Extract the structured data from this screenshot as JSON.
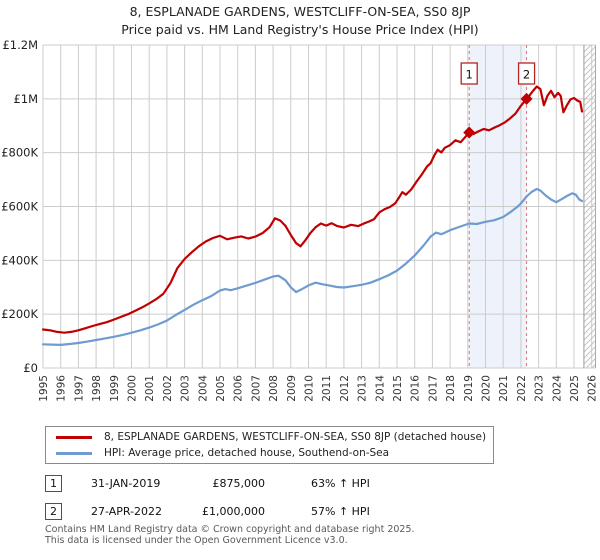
{
  "header": {
    "title": "8, ESPLANADE GARDENS, WESTCLIFF-ON-SEA, SS0 8JP",
    "subtitle": "Price paid vs. HM Land Registry's House Price Index (HPI)"
  },
  "footer": {
    "line1": "Contains HM Land Registry data © Crown copyright and database right 2025.",
    "line2": "This data is licensed under the Open Government Licence v3.0."
  },
  "chart_data": {
    "type": "line",
    "x_range": [
      1995,
      2026
    ],
    "x_ticks": [
      "1995",
      "1996",
      "1997",
      "1998",
      "1999",
      "2000",
      "2001",
      "2002",
      "2003",
      "2004",
      "2005",
      "2006",
      "2007",
      "2008",
      "2009",
      "2010",
      "2011",
      "2012",
      "2013",
      "2014",
      "2015",
      "2016",
      "2017",
      "2018",
      "2019",
      "2020",
      "2021",
      "2022",
      "2023",
      "2024",
      "2025",
      "2026"
    ],
    "y_unit": "GBP thousands",
    "ylim": [
      0,
      1200
    ],
    "y_tick_values": [
      0,
      200,
      400,
      600,
      800,
      1000,
      1200
    ],
    "y_tick_labels": [
      "£0",
      "£200K",
      "£400K",
      "£600K",
      "£800K",
      "£1M",
      "£1.2M"
    ],
    "grid": true,
    "legend_position": "bottom",
    "hatch_from_year": 2025.56,
    "colors": {
      "property": "#c00000",
      "hpi": "#6f9bd1",
      "dashed_marker": "#e57373",
      "shaded_band": "#eef2fb",
      "grid": "#cccccc",
      "marker_box_border": "#bb2222",
      "hatch_line": "#c4c4c4"
    },
    "series": [
      {
        "name": "8, ESPLANADE GARDENS, WESTCLIFF-ON-SEA, SS0 8JP (detached house)",
        "color_key": "property",
        "points": [
          [
            1995.0,
            143
          ],
          [
            1995.4,
            140
          ],
          [
            1995.8,
            134
          ],
          [
            1996.2,
            131
          ],
          [
            1996.6,
            134
          ],
          [
            1997.0,
            140
          ],
          [
            1997.4,
            148
          ],
          [
            1997.8,
            156
          ],
          [
            1998.2,
            163
          ],
          [
            1998.6,
            170
          ],
          [
            1999.0,
            180
          ],
          [
            1999.4,
            190
          ],
          [
            1999.8,
            200
          ],
          [
            2000.2,
            212
          ],
          [
            2000.6,
            225
          ],
          [
            2001.0,
            240
          ],
          [
            2001.4,
            256
          ],
          [
            2001.8,
            276
          ],
          [
            2002.2,
            315
          ],
          [
            2002.6,
            372
          ],
          [
            2003.0,
            405
          ],
          [
            2003.4,
            430
          ],
          [
            2003.8,
            452
          ],
          [
            2004.2,
            470
          ],
          [
            2004.6,
            483
          ],
          [
            2005.0,
            491
          ],
          [
            2005.4,
            478
          ],
          [
            2005.8,
            484
          ],
          [
            2006.2,
            489
          ],
          [
            2006.6,
            481
          ],
          [
            2007.0,
            488
          ],
          [
            2007.4,
            501
          ],
          [
            2007.8,
            523
          ],
          [
            2008.1,
            556
          ],
          [
            2008.4,
            548
          ],
          [
            2008.7,
            528
          ],
          [
            2009.0,
            494
          ],
          [
            2009.3,
            464
          ],
          [
            2009.55,
            452
          ],
          [
            2009.8,
            473
          ],
          [
            2010.1,
            501
          ],
          [
            2010.4,
            523
          ],
          [
            2010.7,
            537
          ],
          [
            2011.0,
            529
          ],
          [
            2011.3,
            538
          ],
          [
            2011.6,
            528
          ],
          [
            2012.0,
            522
          ],
          [
            2012.4,
            532
          ],
          [
            2012.8,
            527
          ],
          [
            2013.1,
            536
          ],
          [
            2013.4,
            544
          ],
          [
            2013.7,
            553
          ],
          [
            2014.0,
            578
          ],
          [
            2014.3,
            590
          ],
          [
            2014.6,
            598
          ],
          [
            2014.9,
            612
          ],
          [
            2015.1,
            632
          ],
          [
            2015.3,
            653
          ],
          [
            2015.5,
            644
          ],
          [
            2015.8,
            663
          ],
          [
            2016.1,
            692
          ],
          [
            2016.4,
            719
          ],
          [
            2016.7,
            749
          ],
          [
            2016.9,
            761
          ],
          [
            2017.1,
            789
          ],
          [
            2017.3,
            811
          ],
          [
            2017.5,
            801
          ],
          [
            2017.7,
            818
          ],
          [
            2018.0,
            828
          ],
          [
            2018.3,
            846
          ],
          [
            2018.6,
            839
          ],
          [
            2018.9,
            861
          ],
          [
            2019.08,
            875
          ],
          [
            2019.3,
            869
          ],
          [
            2019.6,
            879
          ],
          [
            2019.9,
            888
          ],
          [
            2020.2,
            883
          ],
          [
            2020.5,
            893
          ],
          [
            2020.8,
            902
          ],
          [
            2021.1,
            913
          ],
          [
            2021.4,
            928
          ],
          [
            2021.7,
            946
          ],
          [
            2022.0,
            974
          ],
          [
            2022.32,
            1000
          ],
          [
            2022.5,
            1014
          ],
          [
            2022.7,
            1031
          ],
          [
            2022.9,
            1046
          ],
          [
            2023.1,
            1036
          ],
          [
            2023.3,
            976
          ],
          [
            2023.5,
            1012
          ],
          [
            2023.7,
            1030
          ],
          [
            2023.9,
            1006
          ],
          [
            2024.1,
            1022
          ],
          [
            2024.25,
            1011
          ],
          [
            2024.4,
            950
          ],
          [
            2024.6,
            976
          ],
          [
            2024.8,
            998
          ],
          [
            2025.0,
            1003
          ],
          [
            2025.2,
            993
          ],
          [
            2025.35,
            989
          ],
          [
            2025.45,
            953
          ]
        ]
      },
      {
        "name": "HPI: Average price, detached house, Southend-on-Sea",
        "color_key": "hpi",
        "points": [
          [
            1995.0,
            88
          ],
          [
            1995.5,
            87
          ],
          [
            1996.0,
            86
          ],
          [
            1996.5,
            89
          ],
          [
            1997.0,
            93
          ],
          [
            1997.5,
            98
          ],
          [
            1998.0,
            104
          ],
          [
            1998.5,
            110
          ],
          [
            1999.0,
            116
          ],
          [
            1999.5,
            123
          ],
          [
            2000.0,
            131
          ],
          [
            2000.5,
            140
          ],
          [
            2001.0,
            150
          ],
          [
            2001.5,
            162
          ],
          [
            2002.0,
            176
          ],
          [
            2002.5,
            197
          ],
          [
            2003.0,
            216
          ],
          [
            2003.5,
            235
          ],
          [
            2004.0,
            252
          ],
          [
            2004.5,
            267
          ],
          [
            2005.0,
            288
          ],
          [
            2005.3,
            293
          ],
          [
            2005.6,
            289
          ],
          [
            2006.0,
            296
          ],
          [
            2006.5,
            306
          ],
          [
            2007.0,
            316
          ],
          [
            2007.5,
            328
          ],
          [
            2008.0,
            340
          ],
          [
            2008.3,
            343
          ],
          [
            2008.7,
            326
          ],
          [
            2009.0,
            300
          ],
          [
            2009.3,
            282
          ],
          [
            2009.6,
            292
          ],
          [
            2010.0,
            307
          ],
          [
            2010.4,
            317
          ],
          [
            2010.8,
            311
          ],
          [
            2011.2,
            306
          ],
          [
            2011.6,
            301
          ],
          [
            2012.0,
            299
          ],
          [
            2012.5,
            304
          ],
          [
            2013.0,
            309
          ],
          [
            2013.5,
            317
          ],
          [
            2014.0,
            330
          ],
          [
            2014.5,
            344
          ],
          [
            2015.0,
            362
          ],
          [
            2015.5,
            388
          ],
          [
            2016.0,
            418
          ],
          [
            2016.5,
            455
          ],
          [
            2016.9,
            488
          ],
          [
            2017.2,
            503
          ],
          [
            2017.5,
            497
          ],
          [
            2018.0,
            512
          ],
          [
            2018.5,
            524
          ],
          [
            2019.08,
            537
          ],
          [
            2019.5,
            535
          ],
          [
            2020.0,
            543
          ],
          [
            2020.5,
            549
          ],
          [
            2021.0,
            561
          ],
          [
            2021.4,
            579
          ],
          [
            2021.8,
            599
          ],
          [
            2022.0,
            611
          ],
          [
            2022.32,
            637
          ],
          [
            2022.6,
            654
          ],
          [
            2022.9,
            665
          ],
          [
            2023.1,
            659
          ],
          [
            2023.4,
            641
          ],
          [
            2023.7,
            626
          ],
          [
            2024.0,
            616
          ],
          [
            2024.3,
            627
          ],
          [
            2024.6,
            639
          ],
          [
            2024.9,
            649
          ],
          [
            2025.1,
            644
          ],
          [
            2025.3,
            626
          ],
          [
            2025.45,
            620
          ]
        ]
      }
    ],
    "sales": [
      {
        "label": "1",
        "year": 2019.08,
        "value": 875,
        "date": "31-JAN-2019",
        "price": "£875,000",
        "hpi_note": "63% ↑ HPI"
      },
      {
        "label": "2",
        "year": 2022.32,
        "value": 1000,
        "date": "27-APR-2022",
        "price": "£1,000,000",
        "hpi_note": "57% ↑ HPI"
      }
    ]
  }
}
